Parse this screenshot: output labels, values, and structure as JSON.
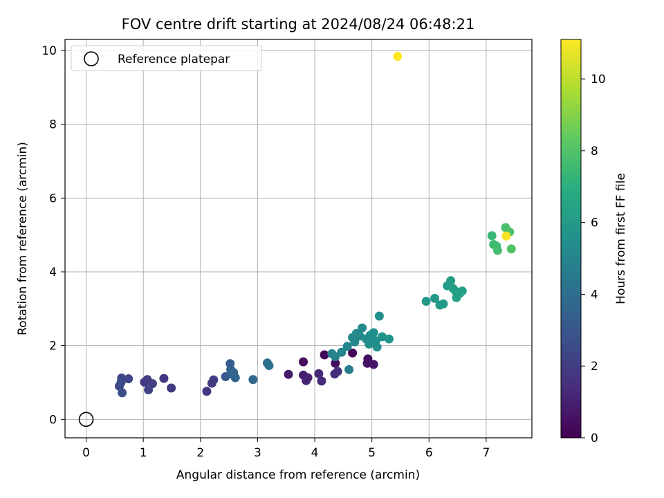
{
  "chart_data": {
    "type": "scatter",
    "title": "FOV centre drift starting at 2024/08/24 06:48:21",
    "xlabel": "Angular distance from reference (arcmin)",
    "ylabel": "Rotation from reference (arcmin)",
    "xlim": [
      -0.37,
      7.8
    ],
    "ylim": [
      -0.5,
      10.3
    ],
    "xticks": [
      "0",
      "1",
      "2",
      "3",
      "4",
      "5",
      "6",
      "7"
    ],
    "yticks": [
      "0",
      "2",
      "4",
      "6",
      "8",
      "10"
    ],
    "grid": true,
    "legend": {
      "position": "top-left",
      "entries": [
        "Reference platepar"
      ]
    },
    "colorbar": {
      "label": "Hours from first FF file",
      "range": [
        0,
        11.1
      ],
      "ticks": [
        "0",
        "2",
        "4",
        "6",
        "8",
        "10"
      ],
      "colormap": "viridis"
    },
    "reference_point": {
      "x": 0,
      "y": 0
    },
    "series": [
      {
        "points": [
          {
            "x": 4.17,
            "y": 1.75,
            "t": 0.1
          },
          {
            "x": 4.66,
            "y": 1.8,
            "t": 0.2
          },
          {
            "x": 3.8,
            "y": 1.56,
            "t": 0.3
          },
          {
            "x": 4.36,
            "y": 1.52,
            "t": 0.4
          },
          {
            "x": 4.93,
            "y": 1.64,
            "t": 0.5
          },
          {
            "x": 4.92,
            "y": 1.52,
            "t": 0.6
          },
          {
            "x": 5.03,
            "y": 1.49,
            "t": 0.7
          },
          {
            "x": 3.54,
            "y": 1.22,
            "t": 0.8
          },
          {
            "x": 3.8,
            "y": 1.2,
            "t": 0.9
          },
          {
            "x": 3.88,
            "y": 1.13,
            "t": 1.0
          },
          {
            "x": 3.85,
            "y": 1.05,
            "t": 1.1
          },
          {
            "x": 4.07,
            "y": 1.24,
            "t": 1.2
          },
          {
            "x": 4.12,
            "y": 1.04,
            "t": 1.3
          },
          {
            "x": 4.35,
            "y": 1.23,
            "t": 1.4
          },
          {
            "x": 4.4,
            "y": 1.3,
            "t": 1.5
          },
          {
            "x": 2.11,
            "y": 0.76,
            "t": 1.7
          },
          {
            "x": 2.2,
            "y": 0.98,
            "t": 1.9
          },
          {
            "x": 2.23,
            "y": 1.07,
            "t": 2.0
          },
          {
            "x": 1.36,
            "y": 1.11,
            "t": 1.8
          },
          {
            "x": 1.49,
            "y": 0.85,
            "t": 1.9
          },
          {
            "x": 1.02,
            "y": 1.01,
            "t": 1.9
          },
          {
            "x": 1.07,
            "y": 1.08,
            "t": 2.0
          },
          {
            "x": 1.16,
            "y": 0.97,
            "t": 2.1
          },
          {
            "x": 1.09,
            "y": 0.8,
            "t": 2.2
          },
          {
            "x": 0.62,
            "y": 1.12,
            "t": 2.2
          },
          {
            "x": 0.74,
            "y": 1.1,
            "t": 2.3
          },
          {
            "x": 0.58,
            "y": 0.9,
            "t": 2.4
          },
          {
            "x": 0.61,
            "y": 1.0,
            "t": 2.5
          },
          {
            "x": 0.63,
            "y": 0.72,
            "t": 2.6
          },
          {
            "x": 2.44,
            "y": 1.16,
            "t": 3.1
          },
          {
            "x": 2.52,
            "y": 1.51,
            "t": 3.3
          },
          {
            "x": 2.53,
            "y": 1.35,
            "t": 3.4
          },
          {
            "x": 2.55,
            "y": 1.23,
            "t": 3.5
          },
          {
            "x": 2.58,
            "y": 1.27,
            "t": 3.6
          },
          {
            "x": 2.61,
            "y": 1.13,
            "t": 3.6
          },
          {
            "x": 2.92,
            "y": 1.08,
            "t": 3.7
          },
          {
            "x": 3.17,
            "y": 1.53,
            "t": 4.0
          },
          {
            "x": 3.2,
            "y": 1.46,
            "t": 4.1
          },
          {
            "x": 4.6,
            "y": 1.35,
            "t": 4.7
          },
          {
            "x": 4.3,
            "y": 1.78,
            "t": 4.8
          },
          {
            "x": 4.36,
            "y": 1.7,
            "t": 4.9
          },
          {
            "x": 4.47,
            "y": 1.82,
            "t": 5.0
          },
          {
            "x": 4.57,
            "y": 1.98,
            "t": 5.0
          },
          {
            "x": 4.7,
            "y": 2.1,
            "t": 5.1
          },
          {
            "x": 4.66,
            "y": 2.22,
            "t": 5.1
          },
          {
            "x": 4.73,
            "y": 2.33,
            "t": 5.2
          },
          {
            "x": 4.79,
            "y": 2.26,
            "t": 5.2
          },
          {
            "x": 4.83,
            "y": 2.48,
            "t": 5.3
          },
          {
            "x": 4.9,
            "y": 2.18,
            "t": 5.3
          },
          {
            "x": 4.95,
            "y": 2.04,
            "t": 5.4
          },
          {
            "x": 4.97,
            "y": 2.28,
            "t": 5.4
          },
          {
            "x": 5.03,
            "y": 2.35,
            "t": 5.5
          },
          {
            "x": 5.07,
            "y": 2.13,
            "t": 5.5
          },
          {
            "x": 5.09,
            "y": 1.96,
            "t": 5.5
          },
          {
            "x": 5.13,
            "y": 2.8,
            "t": 5.5
          },
          {
            "x": 5.18,
            "y": 2.24,
            "t": 5.6
          },
          {
            "x": 5.3,
            "y": 2.18,
            "t": 5.6
          },
          {
            "x": 5.95,
            "y": 3.2,
            "t": 5.9
          },
          {
            "x": 6.1,
            "y": 3.28,
            "t": 5.9
          },
          {
            "x": 6.19,
            "y": 3.1,
            "t": 6.0
          },
          {
            "x": 6.25,
            "y": 3.13,
            "t": 6.0
          },
          {
            "x": 6.32,
            "y": 3.62,
            "t": 6.1
          },
          {
            "x": 6.38,
            "y": 3.76,
            "t": 6.1
          },
          {
            "x": 6.42,
            "y": 3.55,
            "t": 6.2
          },
          {
            "x": 6.47,
            "y": 3.47,
            "t": 6.2
          },
          {
            "x": 6.48,
            "y": 3.3,
            "t": 6.3
          },
          {
            "x": 6.54,
            "y": 3.42,
            "t": 6.3
          },
          {
            "x": 6.58,
            "y": 3.48,
            "t": 6.3
          },
          {
            "x": 7.1,
            "y": 4.98,
            "t": 7.4
          },
          {
            "x": 7.13,
            "y": 4.74,
            "t": 7.5
          },
          {
            "x": 7.18,
            "y": 4.7,
            "t": 7.6
          },
          {
            "x": 7.2,
            "y": 4.58,
            "t": 7.7
          },
          {
            "x": 7.34,
            "y": 5.2,
            "t": 7.8
          },
          {
            "x": 7.41,
            "y": 5.08,
            "t": 7.9
          },
          {
            "x": 7.44,
            "y": 4.62,
            "t": 8.0
          },
          {
            "x": 7.35,
            "y": 4.97,
            "t": 11.0
          },
          {
            "x": 5.45,
            "y": 9.84,
            "t": 11.1
          }
        ]
      }
    ]
  }
}
